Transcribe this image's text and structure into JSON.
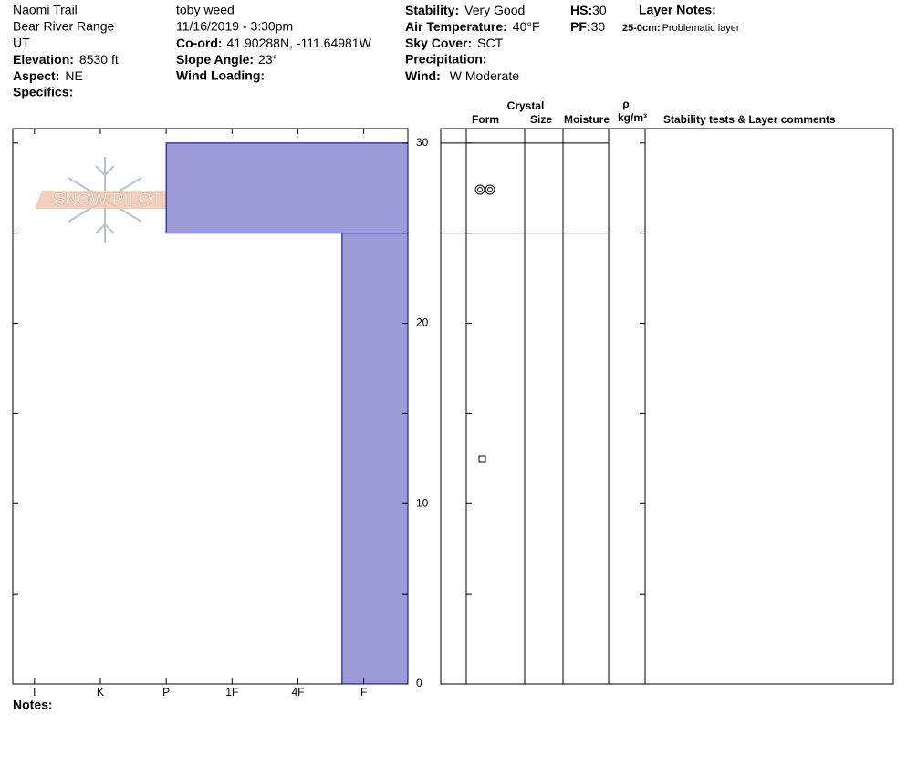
{
  "header": {
    "location": [
      "Naomi Trail",
      "Bear River Range",
      "UT"
    ],
    "elevation": {
      "label": "Elevation:",
      "value": "8530 ft"
    },
    "aspect": {
      "label": "Aspect:",
      "value": "NE"
    },
    "specifics": {
      "label": "Specifics:"
    },
    "observer": "toby weed",
    "datetime": "11/16/2019 - 3:30pm",
    "coord": {
      "label": "Co-ord:",
      "value": "41.90288N, -111.64981W"
    },
    "slope_angle": {
      "label": "Slope Angle:",
      "value": "23°"
    },
    "wind_loading": {
      "label": "Wind Loading:"
    },
    "stability": {
      "label": "Stability:",
      "value": "Very Good"
    },
    "air_temperature": {
      "label": "Air Temperature:",
      "value": "40°F"
    },
    "sky_cover": {
      "label": "Sky Cover:",
      "value": "SCT"
    },
    "precipitation": {
      "label": "Precipitation:"
    },
    "wind": {
      "label": "Wind:",
      "value": "W Moderate"
    },
    "hs": {
      "label": "HS:",
      "value": "30"
    },
    "pf": {
      "label": "PF:",
      "value": "30"
    },
    "layer_notes": {
      "label": "Layer Notes:",
      "range": "25-0cm:",
      "text": "Problematic layer"
    },
    "logo": "SNOW PILOT",
    "notes": "Notes:"
  },
  "table_headers": {
    "crystal": "Crystal",
    "form": "Form",
    "size": "Size",
    "moisture": "Moisture",
    "rho": "ρ",
    "density_unit": "kg/m³",
    "comments": "Stability tests & Layer comments"
  },
  "chart_data": {
    "type": "hardness_profile",
    "layers": [
      {
        "top": 30,
        "bottom": 25,
        "hardness": 4
      },
      {
        "top": 25,
        "bottom": 0,
        "hardness": 1.33
      }
    ],
    "color": "#9b9bd7",
    "edge_color": "#00008b",
    "xlim": [
      6.33,
      0.33
    ],
    "xticks": [
      {
        "value": 6,
        "label": "I"
      },
      {
        "value": 5,
        "label": "K"
      },
      {
        "value": 4,
        "label": "P"
      },
      {
        "value": 3,
        "label": "1F"
      },
      {
        "value": 2,
        "label": "4F"
      },
      {
        "value": 1,
        "label": "F"
      }
    ],
    "ylim": [
      0,
      30.8
    ],
    "yticks": [
      0,
      10,
      20,
      30
    ],
    "minor_yticks": [
      5,
      15,
      25
    ]
  }
}
